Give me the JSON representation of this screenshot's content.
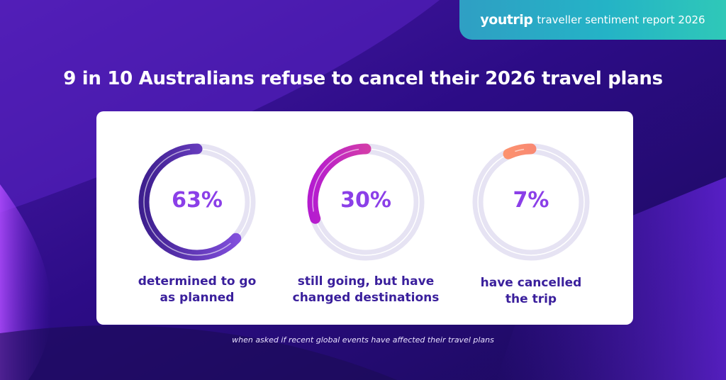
{
  "header": {
    "brand": "youtrip",
    "report": "traveller sentiment report 2026"
  },
  "title": "9 in 10 Australians refuse to cancel their 2026 travel plans",
  "footnote": "when asked if recent global events have affected their travel plans",
  "colors": {
    "ring_track": "#e6e3f3",
    "pct_text": "#8b3fe8",
    "label_text": "#3a1f9c",
    "series": [
      {
        "start": "#8a55e6",
        "end": "#3e1f8f"
      },
      {
        "start": "#ef5a86",
        "end": "#b51ccf"
      },
      {
        "start": "#f37a7a",
        "end": "#ff9a6a"
      }
    ]
  },
  "chart_data": {
    "type": "pie",
    "values": [
      63,
      30,
      7
    ],
    "value_labels": [
      "63%",
      "30%",
      "7%"
    ],
    "categories": [
      "determined to go as planned",
      "still going, but have changed destinations",
      "have cancelled the trip"
    ],
    "label_lines": [
      [
        "determined to go",
        "as planned"
      ],
      [
        "still going, but have",
        "changed destinations"
      ],
      [
        "have cancelled",
        "the trip"
      ]
    ]
  }
}
